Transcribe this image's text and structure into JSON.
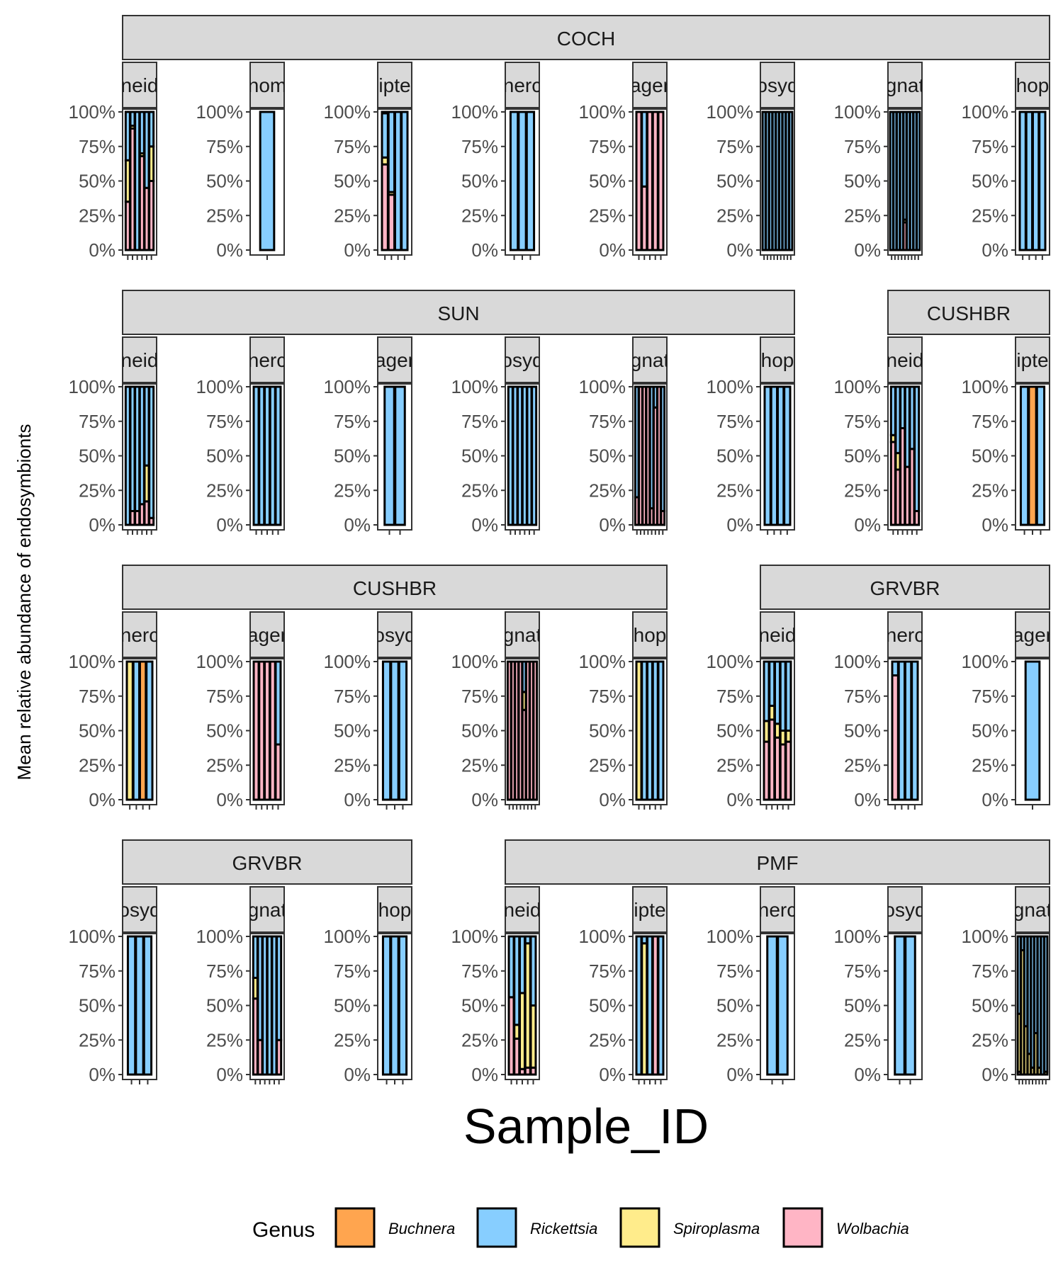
{
  "chart_data": {
    "type": "bar",
    "stacked": true,
    "ylabel": "Mean relative abundance of endosymbionts",
    "xlabel": "Sample_ID",
    "y_ticks": [
      "0%",
      "25%",
      "50%",
      "75%",
      "100%"
    ],
    "ylim": [
      0,
      1
    ],
    "legend": {
      "title": "Genus",
      "position": "bottom",
      "entries": [
        "Buchnera",
        "Rickettsia",
        "Spiroplasma",
        "Wolbachia"
      ]
    },
    "colors": {
      "Buchnera": "#FFA54F",
      "Rickettsia": "#87CEFF",
      "Spiroplasma": "#FFEC8B",
      "Wolbachia": "#FFB5C5"
    },
    "rows": [
      {
        "sites": [
          {
            "name": "COCH",
            "panels": [
              0,
              7
            ]
          }
        ],
        "panels": [
          {
            "label": "neid",
            "bars": [
              {
                "W": 0.35,
                "S": 0.3,
                "R": 0.35
              },
              {
                "W": 0.88,
                "S": 0.02,
                "R": 0.1
              },
              {
                "R": 1
              },
              {
                "W": 0.68,
                "S": 0.02,
                "R": 0.3
              },
              {
                "W": 0.45,
                "R": 0.55
              },
              {
                "W": 0.5,
                "S": 0.25,
                "R": 0.25
              }
            ]
          },
          {
            "label": "nom",
            "bars": [
              {
                "R": 1
              }
            ]
          },
          {
            "label": "ipte",
            "bars": [
              {
                "W": 0.62,
                "S": 0.05,
                "B": 0.01,
                "R": 0.32
              },
              {
                "W": 0.4,
                "S": 0.02,
                "R": 0.58
              },
              {
                "R": 1
              },
              {
                "R": 1
              }
            ]
          },
          {
            "label": "nerc",
            "bars": [
              {
                "R": 1
              },
              {
                "R": 1
              },
              {
                "R": 1
              }
            ]
          },
          {
            "label": "ager",
            "bars": [
              {
                "W": 1
              },
              {
                "W": 0.46,
                "R": 0.54
              },
              {
                "W": 1
              },
              {
                "W": 1
              },
              {
                "W": 1
              }
            ]
          },
          {
            "label": "osyd",
            "bars": [
              {
                "R": 1
              },
              {
                "R": 1
              },
              {
                "R": 1
              },
              {
                "R": 1
              },
              {
                "R": 1
              },
              {
                "R": 1
              },
              {
                "R": 1
              },
              {
                "R": 1
              },
              {
                "R": 1
              }
            ]
          },
          {
            "label": "gnat",
            "bars": [
              {
                "R": 1
              },
              {
                "R": 1
              },
              {
                "R": 1
              },
              {
                "R": 1
              },
              {
                "R": 0.78,
                "S": 0.02,
                "W": 0.2
              },
              {
                "R": 1
              },
              {
                "R": 1
              },
              {
                "R": 1
              },
              {
                "R": 1
              }
            ]
          },
          {
            "label": "hop",
            "bars": [
              {
                "R": 1
              },
              {
                "R": 1
              },
              {
                "R": 1
              },
              {
                "R": 1
              }
            ]
          }
        ]
      },
      {
        "sites": [
          {
            "name": "SUN",
            "panels": [
              0,
              5
            ]
          },
          {
            "name": "CUSHBR",
            "panels": [
              6,
              7
            ]
          }
        ],
        "panels": [
          {
            "label": "neid",
            "bars": [
              {
                "R": 1
              },
              {
                "W": 0.1,
                "R": 0.9
              },
              {
                "W": 0.1,
                "R": 0.9
              },
              {
                "W": 0.15,
                "R": 0.85
              },
              {
                "W": 0.17,
                "S": 0.26,
                "R": 0.57
              },
              {
                "W": 0.05,
                "R": 0.95
              }
            ]
          },
          {
            "label": "nerc",
            "bars": [
              {
                "R": 1
              },
              {
                "R": 1
              },
              {
                "R": 1
              },
              {
                "R": 1
              },
              {
                "R": 1
              }
            ]
          },
          {
            "label": "ager",
            "bars": [
              {
                "R": 1
              },
              {
                "R": 1
              }
            ]
          },
          {
            "label": "osyd",
            "bars": [
              {
                "R": 1
              },
              {
                "R": 1
              },
              {
                "R": 1
              },
              {
                "R": 1
              },
              {
                "R": 1
              },
              {
                "R": 1
              }
            ]
          },
          {
            "label": "gnat",
            "bars": [
              {
                "W": 0.2,
                "R": 0.8
              },
              {
                "W": 1
              },
              {
                "W": 1
              },
              {
                "W": 1
              },
              {
                "W": 0.12,
                "R": 0.88
              },
              {
                "W": 0.85,
                "R": 0.15
              },
              {
                "W": 1
              },
              {
                "W": 0.1,
                "R": 0.9
              }
            ]
          },
          {
            "label": "hop",
            "bars": [
              {
                "R": 1
              },
              {
                "R": 1
              },
              {
                "R": 1
              },
              {
                "R": 1
              }
            ]
          },
          {
            "label": "neid",
            "bars": [
              {
                "W": 0.6,
                "S": 0.05,
                "R": 0.35
              },
              {
                "W": 0.4,
                "S": 0.12,
                "R": 0.48
              },
              {
                "W": 0.7,
                "R": 0.3
              },
              {
                "W": 0.42,
                "R": 0.58
              },
              {
                "W": 0.55,
                "R": 0.45
              },
              {
                "W": 0.1,
                "R": 0.9
              }
            ]
          },
          {
            "label": "ipte",
            "bars": [
              {
                "R": 1
              },
              {
                "B": 1
              },
              {
                "R": 1
              }
            ]
          }
        ]
      },
      {
        "sites": [
          {
            "name": "CUSHBR",
            "panels": [
              0,
              4
            ]
          },
          {
            "name": "GRVBR",
            "panels": [
              5,
              7
            ]
          }
        ],
        "panels": [
          {
            "label": "nerc",
            "bars": [
              {
                "S": 1
              },
              {
                "R": 1
              },
              {
                "B": 1
              },
              {
                "R": 1
              }
            ]
          },
          {
            "label": "ager",
            "bars": [
              {
                "W": 1
              },
              {
                "W": 1
              },
              {
                "W": 1
              },
              {
                "W": 1
              },
              {
                "W": 0.4,
                "R": 0.6
              }
            ]
          },
          {
            "label": "osyd",
            "bars": [
              {
                "R": 1
              },
              {
                "R": 1
              },
              {
                "R": 1
              }
            ]
          },
          {
            "label": "gnat",
            "bars": [
              {
                "W": 1
              },
              {
                "W": 1
              },
              {
                "W": 1
              },
              {
                "W": 1
              },
              {
                "W": 0.65,
                "S": 0.13,
                "R": 0.22
              },
              {
                "W": 1
              },
              {
                "W": 1
              },
              {
                "W": 1
              }
            ]
          },
          {
            "label": "hop",
            "bars": [
              {
                "S": 1
              },
              {
                "R": 1
              },
              {
                "R": 1
              },
              {
                "R": 1
              },
              {
                "R": 1
              }
            ]
          },
          {
            "label": "neid",
            "bars": [
              {
                "W": 0.42,
                "S": 0.15,
                "R": 0.43
              },
              {
                "W": 0.58,
                "S": 0.1,
                "R": 0.32
              },
              {
                "W": 0.45,
                "S": 0.1,
                "R": 0.45
              },
              {
                "W": 0.4,
                "S": 0.1,
                "R": 0.5
              },
              {
                "W": 0.42,
                "S": 0.08,
                "R": 0.5
              }
            ]
          },
          {
            "label": "nerc",
            "bars": [
              {
                "W": 0.9,
                "R": 0.1
              },
              {
                "R": 1
              },
              {
                "R": 1
              },
              {
                "R": 1
              }
            ]
          },
          {
            "label": "ager",
            "bars": [
              {
                "R": 1
              }
            ]
          }
        ]
      },
      {
        "sites": [
          {
            "name": "GRVBR",
            "panels": [
              0,
              2
            ]
          },
          {
            "name": "PMF",
            "panels": [
              3,
              7
            ]
          }
        ],
        "panels": [
          {
            "label": "osyd",
            "bars": [
              {
                "R": 1
              },
              {
                "R": 1
              },
              {
                "R": 1
              }
            ]
          },
          {
            "label": "gnat",
            "bars": [
              {
                "W": 0.55,
                "S": 0.15,
                "R": 0.3
              },
              {
                "W": 0.25,
                "R": 0.75
              },
              {
                "R": 1
              },
              {
                "R": 1
              },
              {
                "R": 1
              },
              {
                "W": 0.25,
                "R": 0.75
              }
            ]
          },
          {
            "label": "hop",
            "bars": [
              {
                "R": 1
              },
              {
                "R": 1
              },
              {
                "R": 1
              }
            ]
          },
          {
            "label": "neid",
            "bars": [
              {
                "W": 0.56,
                "R": 0.44
              },
              {
                "W": 0.26,
                "S": 0.1,
                "R": 0.64
              },
              {
                "W": 0.04,
                "S": 0.55,
                "R": 0.41
              },
              {
                "W": 0.05,
                "S": 0.9,
                "R": 0.05
              },
              {
                "W": 0.05,
                "S": 0.45,
                "R": 0.5
              }
            ]
          },
          {
            "label": "ipte",
            "bars": [
              {
                "R": 1
              },
              {
                "S": 0.95,
                "R": 0.05
              },
              {
                "R": 1
              },
              {
                "W": 1
              },
              {
                "R": 1
              }
            ]
          },
          {
            "label": "nerc",
            "bars": [
              {
                "R": 1
              },
              {
                "R": 1
              }
            ]
          },
          {
            "label": "osyd",
            "bars": [
              {
                "R": 1
              },
              {
                "R": 1
              }
            ]
          },
          {
            "label": "gnat",
            "bars": [
              {
                "S": 0.42,
                "W": 0.02,
                "R": 0.56
              },
              {
                "S": 0.9,
                "R": 0.1
              },
              {
                "S": 0.35,
                "R": 0.65
              },
              {
                "S": 0.15,
                "R": 0.85
              },
              {
                "S": 0.05,
                "R": 0.95
              },
              {
                "S": 0.3,
                "R": 0.7
              },
              {
                "S": 0.05,
                "R": 0.95
              },
              {
                "R": 1
              },
              {
                "S": 0.02,
                "R": 0.98
              }
            ]
          }
        ]
      }
    ]
  }
}
